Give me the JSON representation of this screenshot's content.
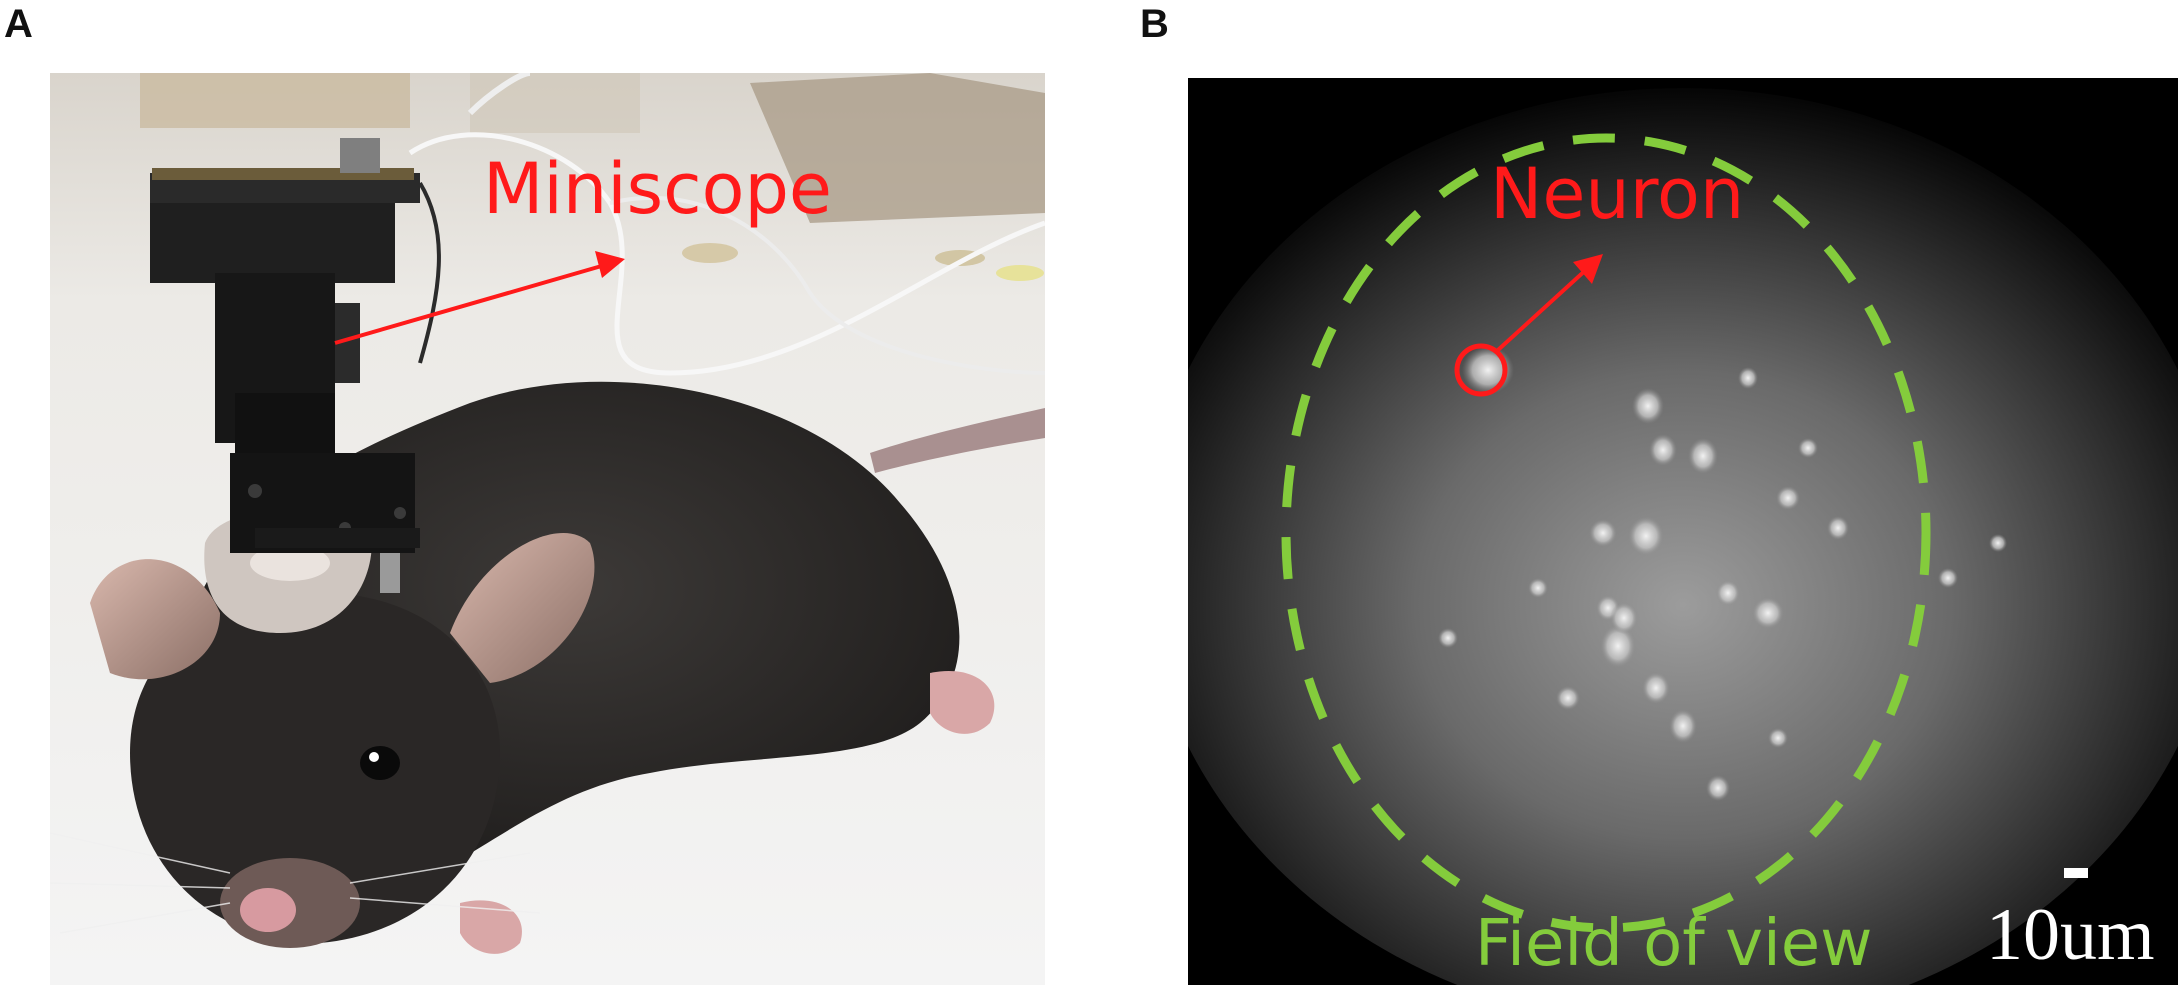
{
  "panels": {
    "a": {
      "letter": "A",
      "label": "Miniscope"
    },
    "b": {
      "letter": "B",
      "neuron_label": "Neuron",
      "fov_label": "Field of view",
      "scale_label": "10um"
    }
  },
  "colors": {
    "annotation_red": "#ff1a1a",
    "fov_green": "#84cc3c",
    "scale_white": "#ffffff"
  }
}
